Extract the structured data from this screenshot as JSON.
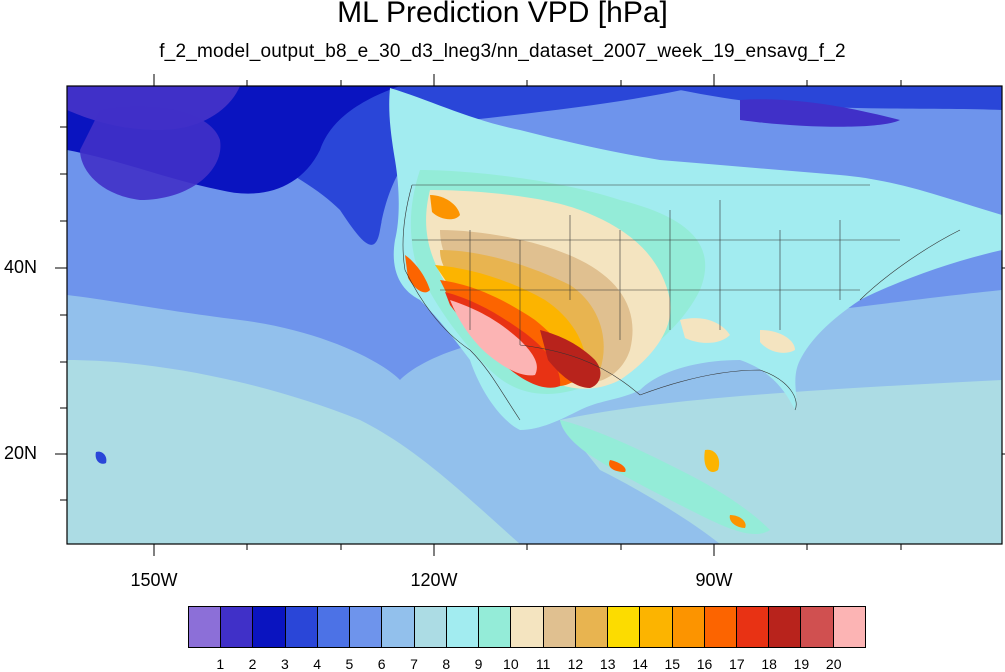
{
  "title": "ML Prediction VPD [hPa]",
  "subtitle": "f_2_model_output_b8_e_30_d3_lneg3/nn_dataset_2007_week_19_ensavg_f_2",
  "axes": {
    "lat_labels": [
      "40N",
      "20N"
    ],
    "lon_labels": [
      "150W",
      "120W",
      "90W"
    ]
  },
  "colorbar": {
    "colors": [
      "#8c6fd8",
      "#4030c8",
      "#0a14c0",
      "#2a46d8",
      "#4c72e6",
      "#6e94ec",
      "#92c0ec",
      "#acdce4",
      "#a2ecf0",
      "#94ecd8",
      "#f4e4c0",
      "#e0c090",
      "#e8b450",
      "#fcdc00",
      "#fcb400",
      "#fc9400",
      "#fc6400",
      "#e83214",
      "#b8231c",
      "#d05050",
      "#fcb4b4"
    ],
    "labels": [
      "1",
      "2",
      "3",
      "4",
      "5",
      "6",
      "7",
      "8",
      "9",
      "10",
      "11",
      "12",
      "13",
      "14",
      "15",
      "16",
      "17",
      "18",
      "19",
      "20"
    ]
  },
  "colors": {
    "ocean_base": "#92c0ec",
    "ocean_mid": "#6e94ec",
    "ocean_dark": "#2a46d8",
    "ocean_deep": "#0a14c0"
  }
}
